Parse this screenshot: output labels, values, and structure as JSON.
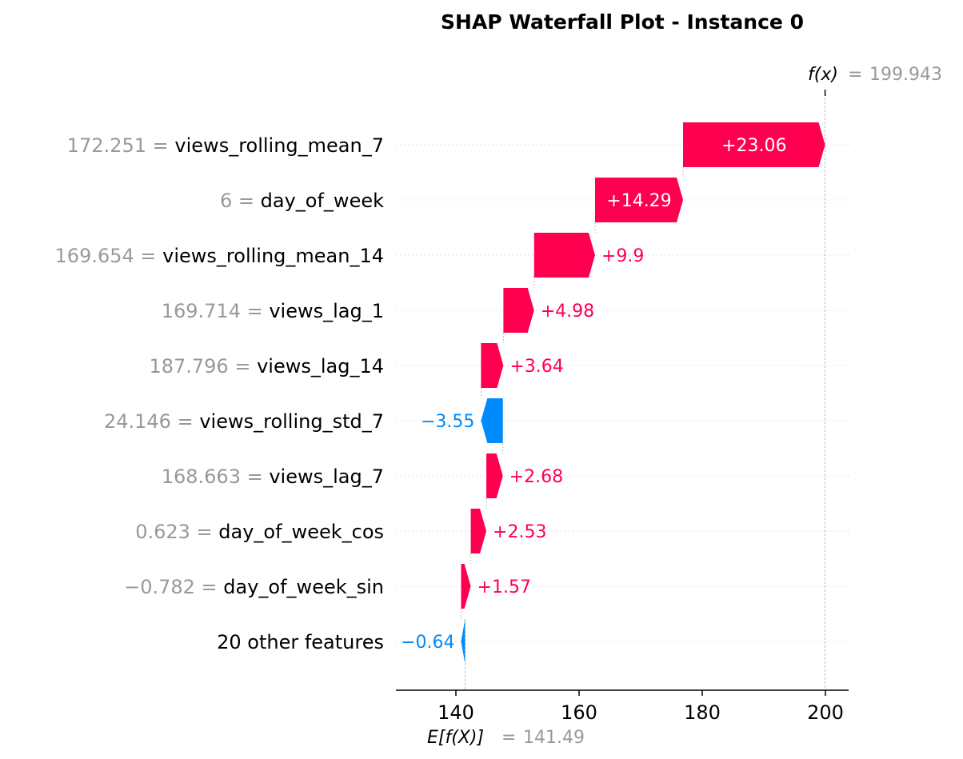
{
  "chart_data": {
    "type": "waterfall",
    "title": "SHAP Waterfall Plot - Instance 0",
    "base_value": 141.49,
    "base_value_label": "141.49",
    "fx_value": 199.943,
    "fx_value_label": "199.943",
    "x_ticks": [
      140,
      160,
      180,
      200
    ],
    "xlim": [
      130.5,
      204
    ],
    "colors": {
      "positive": "#ff0051",
      "negative": "#008bfb",
      "feature_value": "#999999"
    },
    "features": [
      {
        "value_text": "172.251",
        "name": "views_rolling_mean_7",
        "shap": 23.06,
        "label": "+23.06"
      },
      {
        "value_text": "6",
        "name": "day_of_week",
        "shap": 14.29,
        "label": "+14.29"
      },
      {
        "value_text": "169.654",
        "name": "views_rolling_mean_14",
        "shap": 9.9,
        "label": "+9.9"
      },
      {
        "value_text": "169.714",
        "name": "views_lag_1",
        "shap": 4.98,
        "label": "+4.98"
      },
      {
        "value_text": "187.796",
        "name": "views_lag_14",
        "shap": 3.64,
        "label": "+3.64"
      },
      {
        "value_text": "24.146",
        "name": "views_rolling_std_7",
        "shap": -3.55,
        "label": "−3.55"
      },
      {
        "value_text": "168.663",
        "name": "views_lag_7",
        "shap": 2.68,
        "label": "+2.68"
      },
      {
        "value_text": "0.623",
        "name": "day_of_week_cos",
        "shap": 2.53,
        "label": "+2.53"
      },
      {
        "value_text": "−0.782",
        "name": "day_of_week_sin",
        "shap": 1.57,
        "label": "+1.57"
      },
      {
        "value_text": "",
        "name": "20 other features",
        "shap": -0.64,
        "label": "−0.64"
      }
    ]
  }
}
